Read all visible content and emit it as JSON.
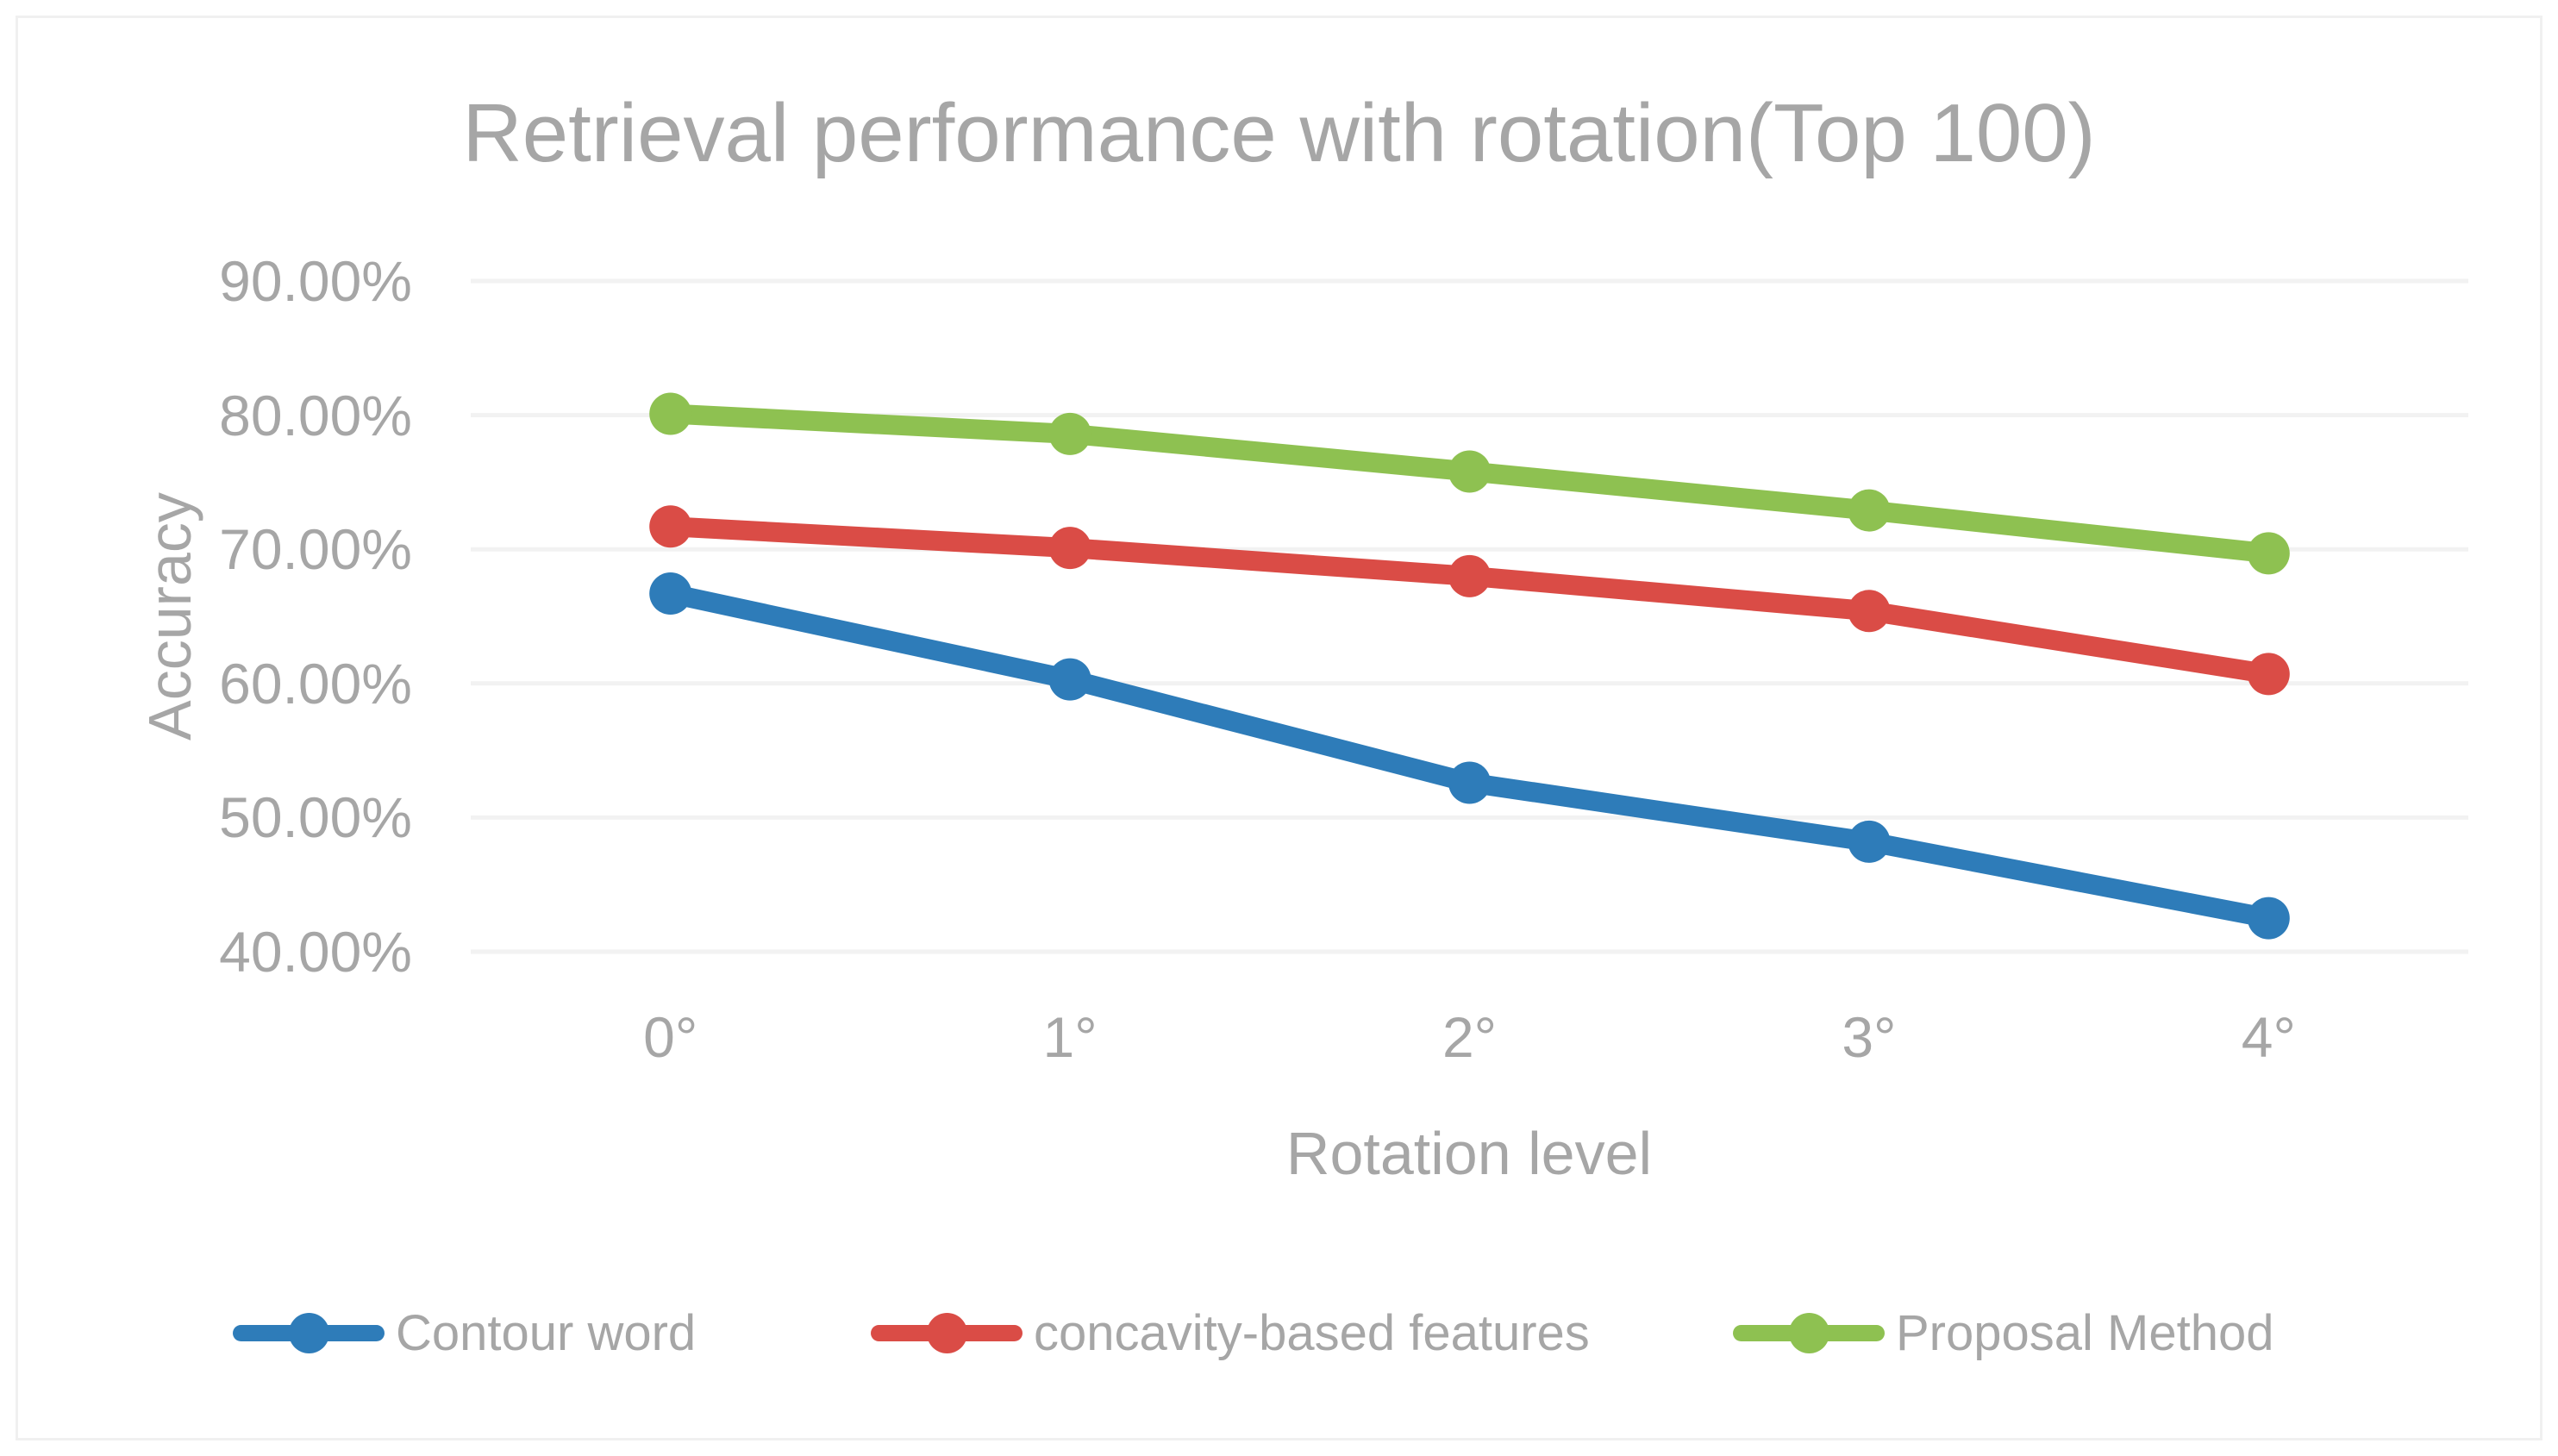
{
  "chart": {
    "title": "Retrieval performance with rotation(Top 100)",
    "y_axis_title": "Accuracy",
    "x_axis_title": "Rotation level",
    "text_color": "#a6a6a6",
    "gridline_color": "#f2f2f2",
    "border_color": "#f0f0f0"
  },
  "chart_data": {
    "type": "line",
    "title": "Retrieval performance with rotation(Top 100)",
    "xlabel": "Rotation level",
    "ylabel": "Accuracy",
    "categories": [
      "0°",
      "1°",
      "2°",
      "3°",
      "4°"
    ],
    "series": [
      {
        "name": "Contour word",
        "color": "#2e7cb9",
        "values": [
          66.7,
          60.3,
          52.6,
          48.2,
          42.5
        ]
      },
      {
        "name": "concavity-based features",
        "color": "#da4c46",
        "values": [
          71.7,
          70.1,
          68.0,
          65.4,
          60.7
        ]
      },
      {
        "name": "Proposal Method",
        "color": "#8ec151",
        "values": [
          80.1,
          78.6,
          75.8,
          72.9,
          69.7
        ]
      }
    ],
    "ylim": [
      40,
      90
    ],
    "y_tick_values": [
      90,
      80,
      70,
      60,
      50,
      40
    ],
    "y_tick_labels": [
      "90.00%",
      "80.00%",
      "70.00%",
      "60.00%",
      "50.00%",
      "40.00%"
    ],
    "grid": true,
    "legend_position": "bottom",
    "marker": "circle"
  }
}
